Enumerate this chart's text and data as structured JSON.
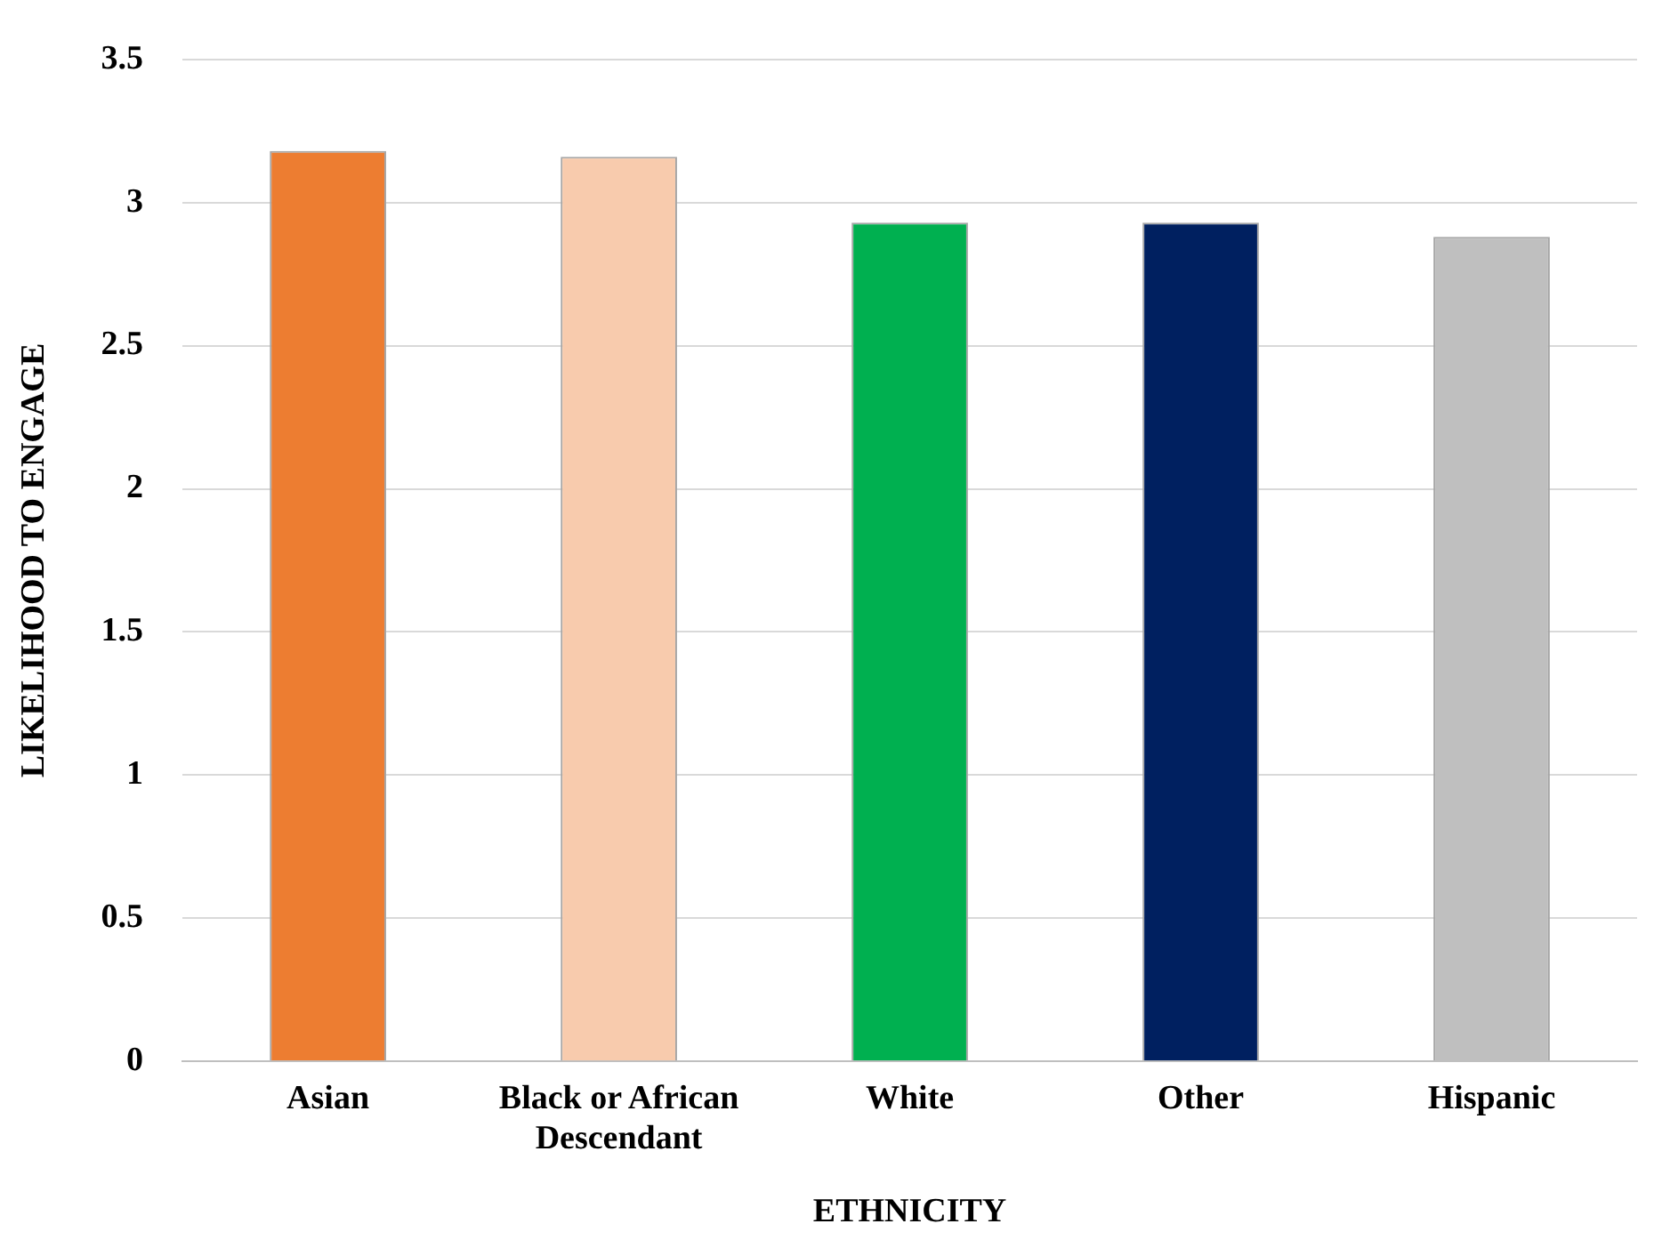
{
  "chart_data": {
    "type": "bar",
    "xlabel": "ETHNICITY",
    "ylabel": "LIKELIHOOD TO ENGAGE",
    "categories": [
      "Asian",
      "Black or African Descendant",
      "White",
      "Other",
      "Hispanic"
    ],
    "values": [
      3.18,
      3.16,
      2.93,
      2.93,
      2.88
    ],
    "colors": [
      "#ed7d31",
      "#f8cbad",
      "#00b050",
      "#002060",
      "#bfbfbf"
    ],
    "ylim": [
      0,
      3.5
    ],
    "yticks": [
      0,
      0.5,
      1,
      1.5,
      2,
      2.5,
      3,
      3.5
    ],
    "grid": "y",
    "legend": false
  }
}
